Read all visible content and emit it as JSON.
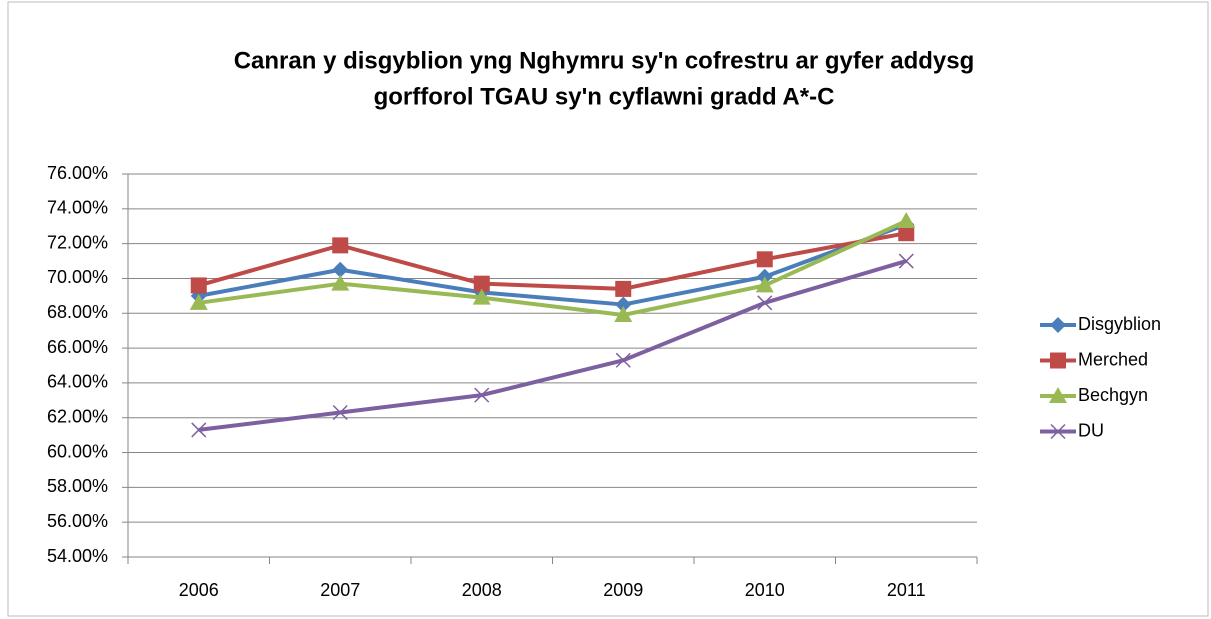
{
  "chart_data": {
    "type": "line",
    "title": [
      "Canran y disgyblion yng Nghymru sy'n cofrestru ar gyfer addysg",
      "gorfforol TGAU sy'n cyflawni gradd A*-C"
    ],
    "categories": [
      "2006",
      "2007",
      "2008",
      "2009",
      "2010",
      "2011"
    ],
    "series": [
      {
        "name": "Disgyblion",
        "color": "#4a7ebb",
        "marker": "diamond",
        "values": [
          69.0,
          70.5,
          69.2,
          68.5,
          70.1,
          73.1
        ]
      },
      {
        "name": "Merched",
        "color": "#be4b48",
        "marker": "square",
        "values": [
          69.6,
          71.9,
          69.7,
          69.4,
          71.1,
          72.6
        ]
      },
      {
        "name": "Bechgyn",
        "color": "#98b954",
        "marker": "triangle",
        "values": [
          68.6,
          69.7,
          68.9,
          67.9,
          69.6,
          73.3
        ]
      },
      {
        "name": "DU",
        "color": "#7d60a0",
        "marker": "x",
        "values": [
          61.3,
          62.3,
          63.3,
          65.3,
          68.6,
          71.0
        ]
      }
    ],
    "ylim": [
      54,
      76
    ],
    "yticks": [
      {
        "value": 54,
        "label": "54.00%"
      },
      {
        "value": 56,
        "label": "56.00%"
      },
      {
        "value": 58,
        "label": "58.00%"
      },
      {
        "value": 60,
        "label": "60.00%"
      },
      {
        "value": 62,
        "label": "62.00%"
      },
      {
        "value": 64,
        "label": "64.00%"
      },
      {
        "value": 66,
        "label": "66.00%"
      },
      {
        "value": 68,
        "label": "68.00%"
      },
      {
        "value": 70,
        "label": "70.00%"
      },
      {
        "value": 72,
        "label": "72.00%"
      },
      {
        "value": 74,
        "label": "74.00%"
      },
      {
        "value": 76,
        "label": "76.00%"
      }
    ],
    "grid": true,
    "legend": "right"
  }
}
